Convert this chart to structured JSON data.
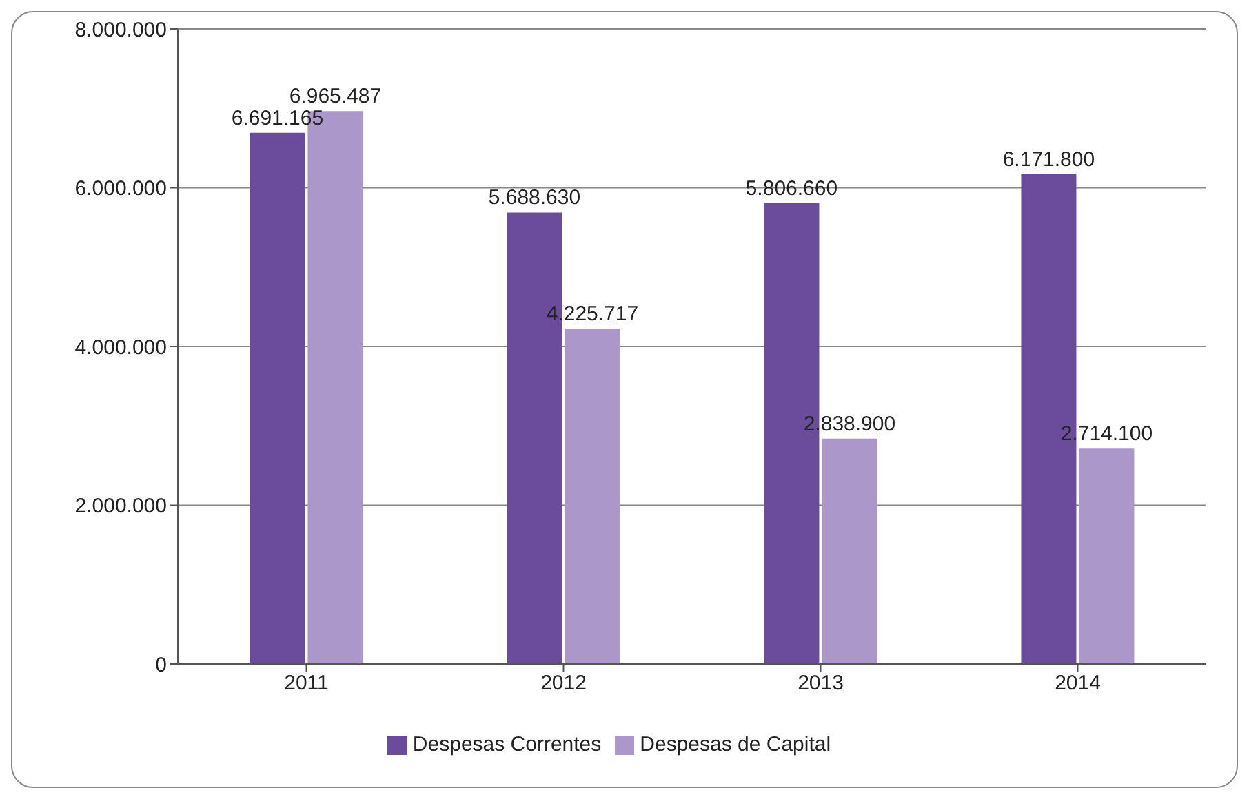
{
  "chart_data": {
    "type": "bar",
    "categories": [
      "2011",
      "2012",
      "2013",
      "2014"
    ],
    "series": [
      {
        "name": "Despesas Correntes",
        "color": "#6b4c9c",
        "values": [
          6691165,
          5688630,
          5806660,
          6171800
        ],
        "value_labels": [
          "6.691.165",
          "5.688.630",
          "5.806.660",
          "6.171.800"
        ]
      },
      {
        "name": "Despesas de Capital",
        "color": "#ab97c9",
        "values": [
          6965487,
          4225717,
          2838900,
          2714100
        ],
        "value_labels": [
          "6.965.487",
          "4.225.717",
          "2.838.900",
          "2.714.100"
        ]
      }
    ],
    "ylim": [
      0,
      8000000
    ],
    "yticks": [
      0,
      {
        "value": 2000000,
        "label": "2.000.000"
      },
      {
        "value": 4000000,
        "label": "4.000.000"
      },
      {
        "value": 6000000,
        "label": "6.000.000"
      },
      {
        "value": 8000000,
        "label": "8.000.000"
      }
    ],
    "grid": "y",
    "legend": "bottom"
  }
}
